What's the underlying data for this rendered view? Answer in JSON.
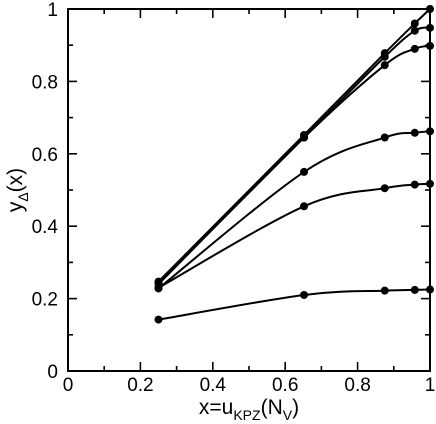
{
  "chart_data": {
    "type": "line",
    "title": "",
    "xlabel": "x=u_{KPZ}(N_V)",
    "ylabel": "y_Δ(x)",
    "xlabel_parts": {
      "main": "x=u",
      "sub1": "KPZ",
      "mid": "(N",
      "sub2": "V",
      "end": ")"
    },
    "ylabel_parts": {
      "main": "y",
      "sub": "Δ",
      "end": "(x)"
    },
    "xlim": [
      0,
      1
    ],
    "ylim": [
      0,
      1
    ],
    "xticks": [
      0,
      0.2,
      0.4,
      0.6,
      0.8,
      1
    ],
    "yticks": [
      0,
      0.2,
      0.4,
      0.6,
      0.8,
      1
    ],
    "xtick_labels": [
      "0",
      "0.2",
      "0.4",
      "0.6",
      "0.8",
      "1"
    ],
    "ytick_labels": [
      "0",
      "0.2",
      "0.4",
      "0.6",
      "0.8",
      "1"
    ],
    "grid": false,
    "x": [
      0.25,
      0.652,
      0.875,
      0.958,
      1.0
    ],
    "series": [
      {
        "values": [
          0.247,
          0.652,
          0.878,
          0.96,
          1.0
        ]
      },
      {
        "values": [
          0.243,
          0.645,
          0.868,
          0.94,
          0.948
        ]
      },
      {
        "values": [
          0.24,
          0.645,
          0.845,
          0.89,
          0.898
        ]
      },
      {
        "values": [
          0.228,
          0.55,
          0.645,
          0.658,
          0.662
        ]
      },
      {
        "values": [
          0.23,
          0.455,
          0.505,
          0.515,
          0.517
        ]
      },
      {
        "values": [
          0.142,
          0.21,
          0.222,
          0.224,
          0.225
        ]
      }
    ]
  }
}
